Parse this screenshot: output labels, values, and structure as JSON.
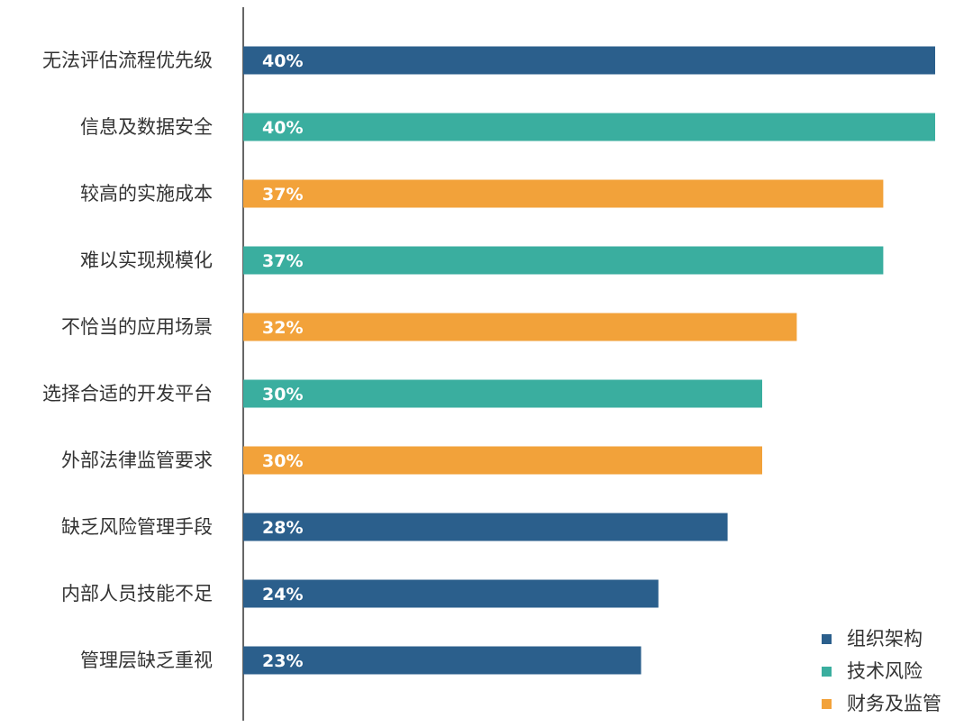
{
  "chart_data": {
    "type": "bar",
    "orientation": "horizontal",
    "title": "",
    "xlabel": "",
    "ylabel": "",
    "xlim": [
      0,
      40
    ],
    "grid": false,
    "legend_position": "bottom-right",
    "series_colors": {
      "组织架构": "#2b5f8c",
      "技术风险": "#3aae9f",
      "财务及监管": "#f2a23a"
    },
    "legend": [
      "组织架构",
      "技术风险",
      "财务及监管"
    ],
    "bars": [
      {
        "category": "无法评估流程优先级",
        "value": 40,
        "label": "40%",
        "group": "组织架构"
      },
      {
        "category": "信息及数据安全",
        "value": 40,
        "label": "40%",
        "group": "技术风险"
      },
      {
        "category": "较高的实施成本",
        "value": 37,
        "label": "37%",
        "group": "财务及监管"
      },
      {
        "category": "难以实现规模化",
        "value": 37,
        "label": "37%",
        "group": "技术风险"
      },
      {
        "category": "不恰当的应用场景",
        "value": 32,
        "label": "32%",
        "group": "财务及监管"
      },
      {
        "category": "选择合适的开发平台",
        "value": 30,
        "label": "30%",
        "group": "技术风险"
      },
      {
        "category": "外部法律监管要求",
        "value": 30,
        "label": "30%",
        "group": "财务及监管"
      },
      {
        "category": "缺乏风险管理手段",
        "value": 28,
        "label": "28%",
        "group": "组织架构"
      },
      {
        "category": "内部人员技能不足",
        "value": 24,
        "label": "24%",
        "group": "组织架构"
      },
      {
        "category": "管理层缺乏重视",
        "value": 23,
        "label": "23%",
        "group": "组织架构"
      }
    ]
  }
}
